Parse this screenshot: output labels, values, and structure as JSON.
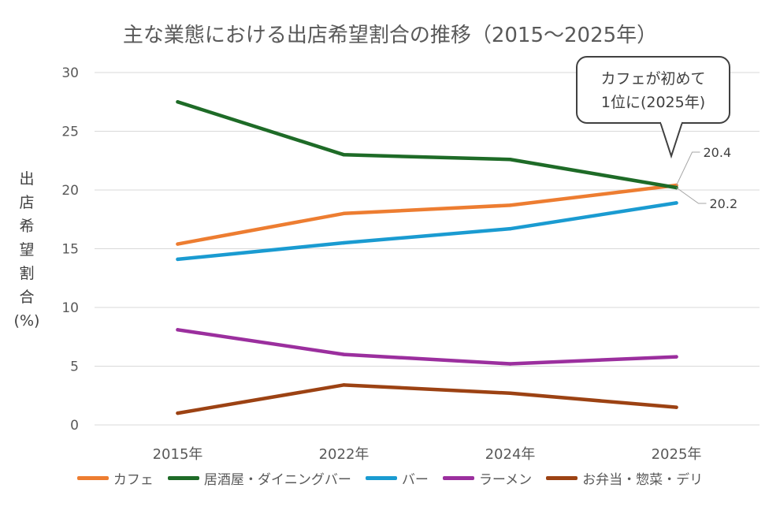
{
  "chart_data": {
    "type": "line",
    "title": "主な業態における出店希望割合の推移（2015～2025年）",
    "ylabel_chars": [
      "出",
      "店",
      "希",
      "望",
      "割",
      "合",
      "(%)"
    ],
    "xlabel": "",
    "ylim": [
      0,
      30
    ],
    "yticks": [
      0,
      5,
      10,
      15,
      20,
      25,
      30
    ],
    "categories": [
      "2015年",
      "2022年",
      "2024年",
      "2025年"
    ],
    "series": [
      {
        "name": "カフェ",
        "color": "#ED7D31",
        "values": [
          15.4,
          18.0,
          18.7,
          20.4
        ]
      },
      {
        "name": "居酒屋・ダイニングバー",
        "color": "#1E6B27",
        "values": [
          27.5,
          23.0,
          22.6,
          20.2
        ]
      },
      {
        "name": "バー",
        "color": "#1A9BD1",
        "values": [
          14.1,
          15.5,
          16.7,
          18.9
        ]
      },
      {
        "name": "ラーメン",
        "color": "#9B2F9E",
        "values": [
          8.1,
          6.0,
          5.2,
          5.8
        ]
      },
      {
        "name": "お弁当・惣菜・デリ",
        "color": "#9C4213",
        "values": [
          1.0,
          3.4,
          2.7,
          1.5
        ]
      }
    ],
    "data_labels": [
      {
        "series": "カフェ",
        "category": "2025年",
        "text": "20.4"
      },
      {
        "series": "居酒屋・ダイニングバー",
        "category": "2025年",
        "text": "20.2"
      }
    ],
    "annotation": {
      "line1": "カフェが初めて",
      "line2": "1位に(2025年)"
    },
    "grid": true,
    "legend_position": "bottom"
  }
}
